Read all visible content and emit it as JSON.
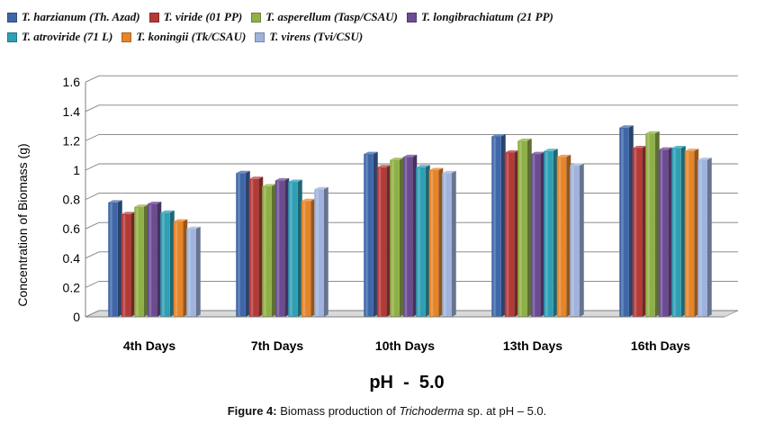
{
  "chart_data": {
    "type": "bar",
    "style": "3d-clustered-column",
    "categories": [
      "4th Days",
      "7th Days",
      "10th Days",
      "13th Days",
      "16th Days"
    ],
    "series": [
      {
        "name": "T. harzianum (Th. Azad)",
        "color": "#3f67a8",
        "values": [
          0.78,
          0.98,
          1.11,
          1.23,
          1.29
        ]
      },
      {
        "name": "T. viride (01 PP)",
        "color": "#b43a37",
        "values": [
          0.7,
          0.94,
          1.02,
          1.12,
          1.15
        ]
      },
      {
        "name": "T. asperellum (Tasp/CSAU)",
        "color": "#8fb046",
        "values": [
          0.75,
          0.89,
          1.07,
          1.2,
          1.25
        ]
      },
      {
        "name": "T. longibrachiatum (21 PP)",
        "color": "#6b4c92",
        "values": [
          0.77,
          0.93,
          1.09,
          1.11,
          1.14
        ]
      },
      {
        "name": "T. atroviride (71 L)",
        "color": "#2f9fb3",
        "values": [
          0.71,
          0.92,
          1.02,
          1.13,
          1.15
        ]
      },
      {
        "name": "T. koningii (Tk/CSAU)",
        "color": "#e68429",
        "values": [
          0.65,
          0.79,
          1.0,
          1.09,
          1.13
        ]
      },
      {
        "name": "T. virens (Tvi/CSU)",
        "color": "#9fb3dc",
        "values": [
          0.6,
          0.87,
          0.98,
          1.03,
          1.07
        ]
      }
    ],
    "title": "pH  -  5.0",
    "xlabel": "",
    "ylabel": "Concentration of Biomass (g)",
    "ylim": [
      0,
      1.6
    ],
    "yticks": [
      "0",
      "0.2",
      "0.4",
      "0.6",
      "0.8",
      "1",
      "1.2",
      "1.4",
      "1.6"
    ],
    "grid": true,
    "legend_position": "top"
  },
  "caption": {
    "label": "Figure 4:",
    "text_before": " Biomass production of ",
    "italic": "Trichoderma",
    "text_after": " sp. at pH – 5.0."
  }
}
